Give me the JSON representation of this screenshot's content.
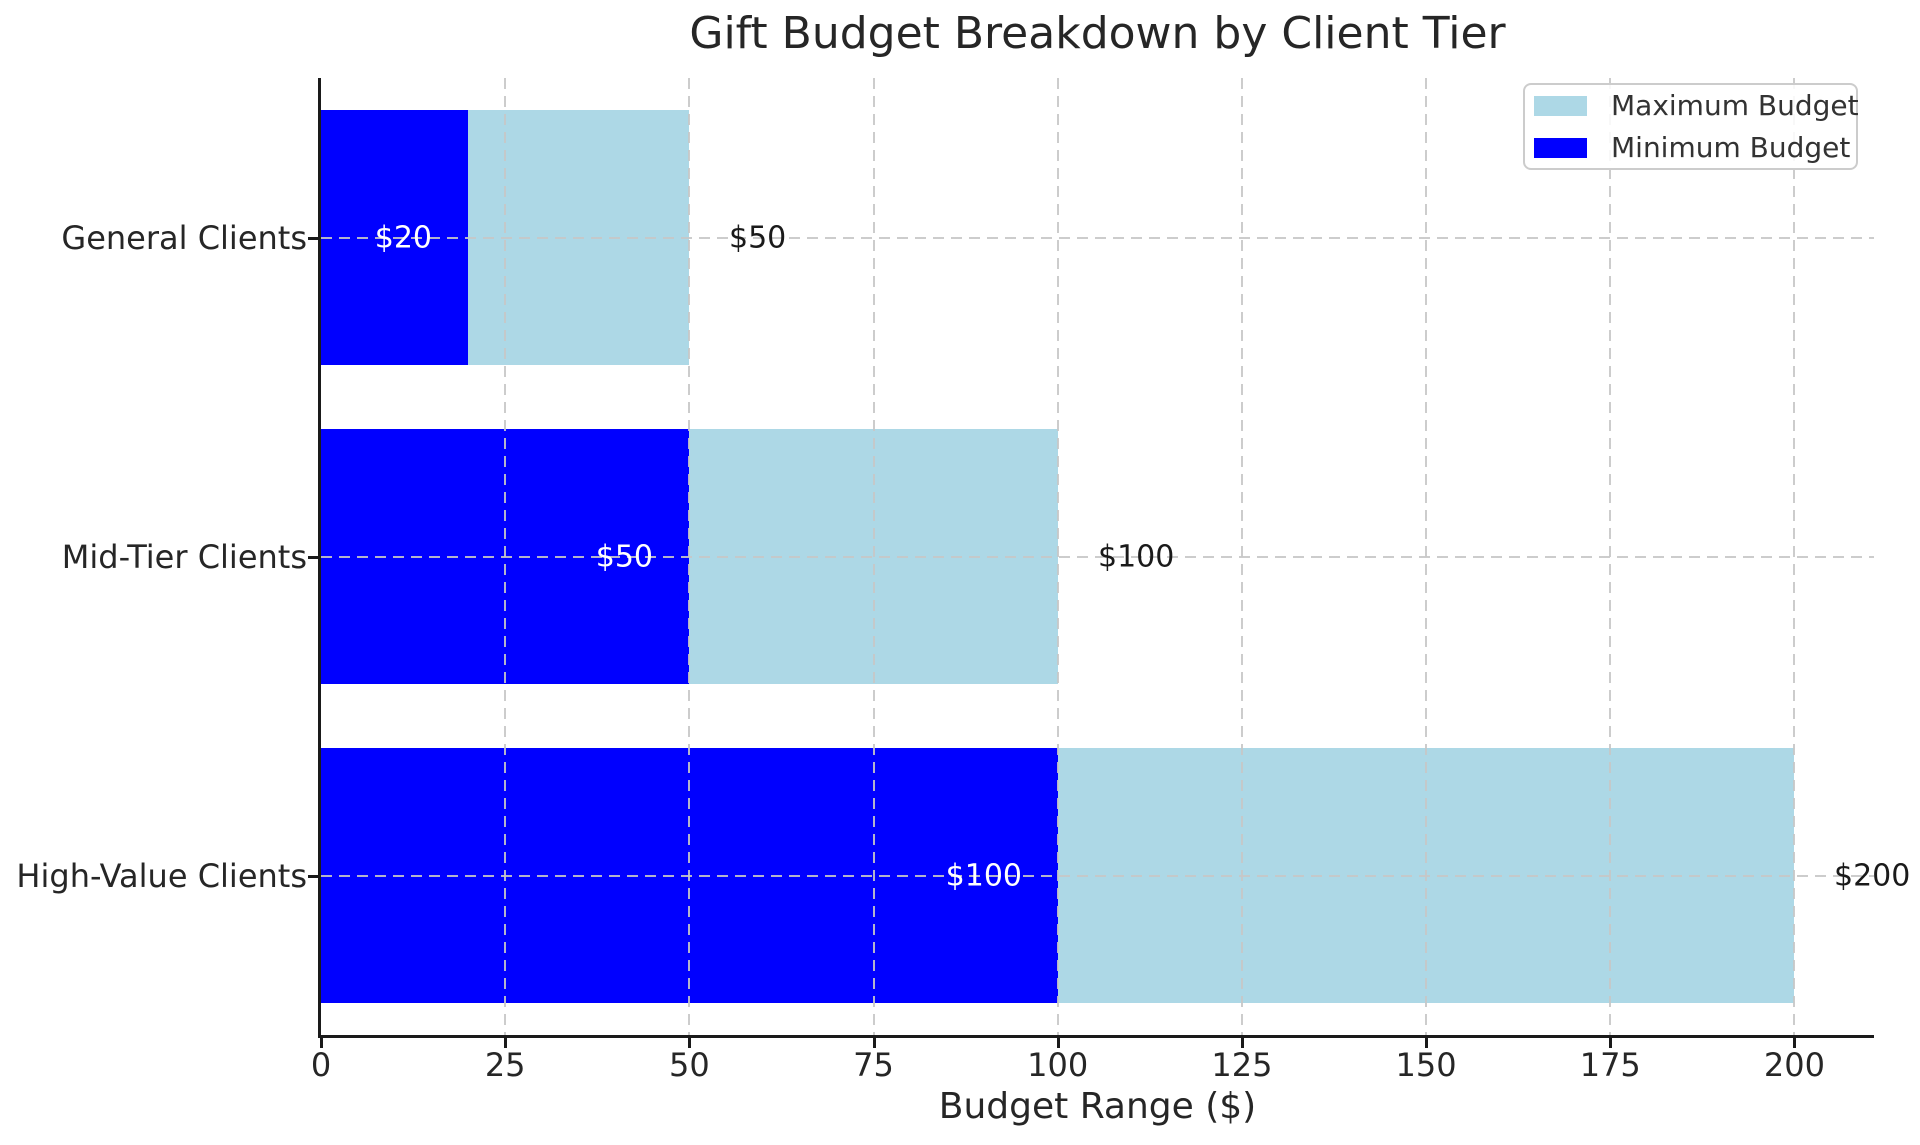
{
  "title": "Gift Budget Breakdown by Client Tier",
  "xlabel": "Budget Range ($)",
  "legend": {
    "entries": [
      {
        "label": "Maximum Budget",
        "color": "#ADD8E6"
      },
      {
        "label": "Minimum Budget",
        "color": "#0000FF"
      }
    ],
    "position": "upper right"
  },
  "colors": {
    "minimum_bar": "#0000FF",
    "maximum_bar": "#ADD8E6",
    "grid": "#c7c7c7",
    "axis": "#1a1a1a",
    "text": "#262626",
    "min_label_text": "#ffffff",
    "max_label_text": "#1a1a1a"
  },
  "chart_data": {
    "type": "bar",
    "orientation": "horizontal",
    "title": "Gift Budget Breakdown by Client Tier",
    "xlabel": "Budget Range ($)",
    "ylabel": "",
    "categories": [
      "General Clients",
      "Mid-Tier Clients",
      "High-Value Clients"
    ],
    "series": [
      {
        "name": "Maximum Budget",
        "values": [
          50,
          100,
          200
        ],
        "color": "#ADD8E6"
      },
      {
        "name": "Minimum Budget",
        "values": [
          20,
          50,
          100
        ],
        "color": "#0000FF"
      }
    ],
    "bar_labels": {
      "minimum": [
        "$20",
        "$50",
        "$100"
      ],
      "maximum": [
        "$50",
        "$100",
        "$200"
      ]
    },
    "xticks": [
      0,
      25,
      50,
      75,
      100,
      125,
      150,
      175,
      200
    ],
    "xlim": [
      0,
      210.8
    ],
    "grid": "dashed, both axes, drawn over bars",
    "legend_position": "upper right"
  }
}
